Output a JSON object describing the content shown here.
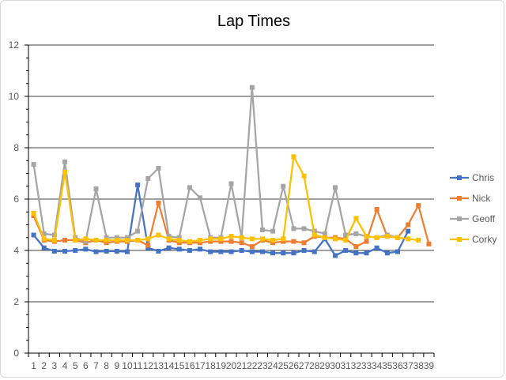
{
  "chart_data": {
    "type": "line",
    "title": "Lap Times",
    "xlabel": "",
    "ylabel": "",
    "ylim": [
      0,
      12
    ],
    "yticks": [
      0,
      2,
      4,
      6,
      8,
      10,
      12
    ],
    "x_categories": [
      "1",
      "2",
      "3",
      "4",
      "5",
      "6",
      "7",
      "8",
      "9",
      "10",
      "11",
      "12",
      "13",
      "14",
      "15",
      "16",
      "17",
      "18",
      "19",
      "20",
      "21",
      "22",
      "23",
      "24",
      "25",
      "26",
      "27",
      "28",
      "29",
      "30",
      "31",
      "32",
      "33",
      "34",
      "35",
      "36",
      "37",
      "38",
      "39"
    ],
    "grid": "horizontal-major",
    "legend": "right",
    "series": [
      {
        "name": "Chris",
        "color": "#4472c4",
        "values": [
          4.6,
          4.1,
          3.97,
          3.97,
          4.0,
          4.05,
          3.95,
          3.97,
          3.97,
          3.95,
          6.55,
          4.1,
          3.97,
          4.1,
          4.05,
          4.0,
          4.05,
          3.95,
          3.95,
          3.95,
          4.0,
          3.95,
          3.95,
          3.9,
          3.9,
          3.9,
          4.0,
          3.95,
          4.45,
          3.8,
          4.0,
          3.9,
          3.9,
          4.1,
          3.9,
          3.95,
          4.75
        ]
      },
      {
        "name": "Nick",
        "color": "#ed7d31",
        "values": [
          5.35,
          4.4,
          4.35,
          4.4,
          4.4,
          4.3,
          4.4,
          4.3,
          4.35,
          4.35,
          4.4,
          4.2,
          5.85,
          4.4,
          4.3,
          4.3,
          4.3,
          4.35,
          4.35,
          4.35,
          4.3,
          4.15,
          4.4,
          4.3,
          4.35,
          4.35,
          4.3,
          4.55,
          4.5,
          4.5,
          4.45,
          4.15,
          4.35,
          5.6,
          4.55,
          4.5,
          5.0,
          5.75,
          4.25
        ]
      },
      {
        "name": "Geoff",
        "color": "#a5a5a5",
        "values": [
          7.35,
          4.65,
          4.6,
          7.45,
          4.5,
          4.35,
          6.4,
          4.5,
          4.5,
          4.5,
          4.75,
          6.8,
          7.2,
          4.55,
          4.5,
          6.45,
          6.05,
          4.5,
          4.5,
          6.6,
          4.5,
          10.35,
          4.8,
          4.75,
          6.5,
          4.85,
          4.85,
          4.75,
          4.65,
          6.45,
          4.6,
          4.65,
          4.55,
          4.5,
          4.6,
          4.5
        ]
      },
      {
        "name": "Corky",
        "color": "#ffc000",
        "values": [
          5.45,
          4.45,
          4.4,
          7.05,
          4.4,
          4.45,
          4.4,
          4.4,
          4.4,
          4.4,
          4.4,
          4.45,
          4.6,
          4.45,
          4.4,
          4.35,
          4.4,
          4.45,
          4.45,
          4.55,
          4.5,
          4.45,
          4.45,
          4.4,
          4.45,
          7.65,
          6.9,
          4.6,
          4.5,
          4.45,
          4.4,
          5.25,
          4.55,
          4.5,
          4.55,
          4.5,
          4.45,
          4.4
        ]
      }
    ]
  }
}
